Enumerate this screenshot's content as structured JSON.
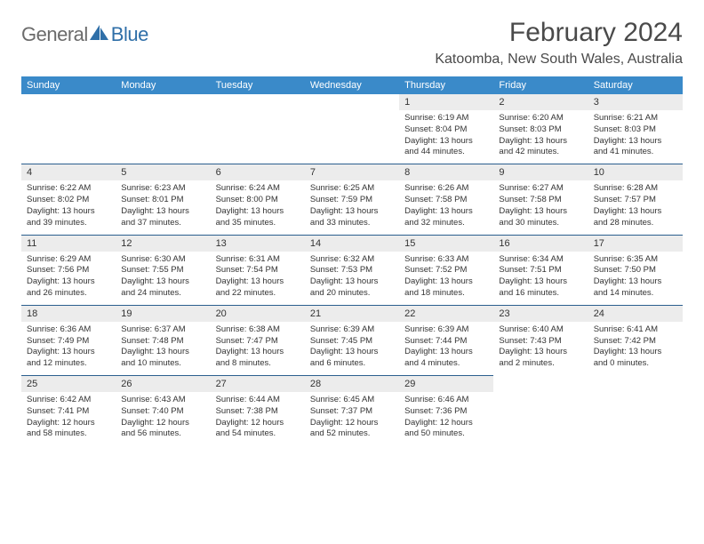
{
  "brand": {
    "general": "General",
    "blue": "Blue"
  },
  "header": {
    "title": "February 2024",
    "subtitle": "Katoomba, New South Wales, Australia"
  },
  "colors": {
    "header_bg": "#3a8ac9",
    "header_text": "#ffffff",
    "daynum_bg": "#ececec",
    "border": "#2b5f8f",
    "logo_blue": "#2f6fa8",
    "logo_grey": "#6b6b6b"
  },
  "weekdays": [
    "Sunday",
    "Monday",
    "Tuesday",
    "Wednesday",
    "Thursday",
    "Friday",
    "Saturday"
  ],
  "weeks": [
    [
      {
        "day": "",
        "sunrise": "",
        "sunset": "",
        "daylight": ""
      },
      {
        "day": "",
        "sunrise": "",
        "sunset": "",
        "daylight": ""
      },
      {
        "day": "",
        "sunrise": "",
        "sunset": "",
        "daylight": ""
      },
      {
        "day": "",
        "sunrise": "",
        "sunset": "",
        "daylight": ""
      },
      {
        "day": "1",
        "sunrise": "Sunrise: 6:19 AM",
        "sunset": "Sunset: 8:04 PM",
        "daylight": "Daylight: 13 hours and 44 minutes."
      },
      {
        "day": "2",
        "sunrise": "Sunrise: 6:20 AM",
        "sunset": "Sunset: 8:03 PM",
        "daylight": "Daylight: 13 hours and 42 minutes."
      },
      {
        "day": "3",
        "sunrise": "Sunrise: 6:21 AM",
        "sunset": "Sunset: 8:03 PM",
        "daylight": "Daylight: 13 hours and 41 minutes."
      }
    ],
    [
      {
        "day": "4",
        "sunrise": "Sunrise: 6:22 AM",
        "sunset": "Sunset: 8:02 PM",
        "daylight": "Daylight: 13 hours and 39 minutes."
      },
      {
        "day": "5",
        "sunrise": "Sunrise: 6:23 AM",
        "sunset": "Sunset: 8:01 PM",
        "daylight": "Daylight: 13 hours and 37 minutes."
      },
      {
        "day": "6",
        "sunrise": "Sunrise: 6:24 AM",
        "sunset": "Sunset: 8:00 PM",
        "daylight": "Daylight: 13 hours and 35 minutes."
      },
      {
        "day": "7",
        "sunrise": "Sunrise: 6:25 AM",
        "sunset": "Sunset: 7:59 PM",
        "daylight": "Daylight: 13 hours and 33 minutes."
      },
      {
        "day": "8",
        "sunrise": "Sunrise: 6:26 AM",
        "sunset": "Sunset: 7:58 PM",
        "daylight": "Daylight: 13 hours and 32 minutes."
      },
      {
        "day": "9",
        "sunrise": "Sunrise: 6:27 AM",
        "sunset": "Sunset: 7:58 PM",
        "daylight": "Daylight: 13 hours and 30 minutes."
      },
      {
        "day": "10",
        "sunrise": "Sunrise: 6:28 AM",
        "sunset": "Sunset: 7:57 PM",
        "daylight": "Daylight: 13 hours and 28 minutes."
      }
    ],
    [
      {
        "day": "11",
        "sunrise": "Sunrise: 6:29 AM",
        "sunset": "Sunset: 7:56 PM",
        "daylight": "Daylight: 13 hours and 26 minutes."
      },
      {
        "day": "12",
        "sunrise": "Sunrise: 6:30 AM",
        "sunset": "Sunset: 7:55 PM",
        "daylight": "Daylight: 13 hours and 24 minutes."
      },
      {
        "day": "13",
        "sunrise": "Sunrise: 6:31 AM",
        "sunset": "Sunset: 7:54 PM",
        "daylight": "Daylight: 13 hours and 22 minutes."
      },
      {
        "day": "14",
        "sunrise": "Sunrise: 6:32 AM",
        "sunset": "Sunset: 7:53 PM",
        "daylight": "Daylight: 13 hours and 20 minutes."
      },
      {
        "day": "15",
        "sunrise": "Sunrise: 6:33 AM",
        "sunset": "Sunset: 7:52 PM",
        "daylight": "Daylight: 13 hours and 18 minutes."
      },
      {
        "day": "16",
        "sunrise": "Sunrise: 6:34 AM",
        "sunset": "Sunset: 7:51 PM",
        "daylight": "Daylight: 13 hours and 16 minutes."
      },
      {
        "day": "17",
        "sunrise": "Sunrise: 6:35 AM",
        "sunset": "Sunset: 7:50 PM",
        "daylight": "Daylight: 13 hours and 14 minutes."
      }
    ],
    [
      {
        "day": "18",
        "sunrise": "Sunrise: 6:36 AM",
        "sunset": "Sunset: 7:49 PM",
        "daylight": "Daylight: 13 hours and 12 minutes."
      },
      {
        "day": "19",
        "sunrise": "Sunrise: 6:37 AM",
        "sunset": "Sunset: 7:48 PM",
        "daylight": "Daylight: 13 hours and 10 minutes."
      },
      {
        "day": "20",
        "sunrise": "Sunrise: 6:38 AM",
        "sunset": "Sunset: 7:47 PM",
        "daylight": "Daylight: 13 hours and 8 minutes."
      },
      {
        "day": "21",
        "sunrise": "Sunrise: 6:39 AM",
        "sunset": "Sunset: 7:45 PM",
        "daylight": "Daylight: 13 hours and 6 minutes."
      },
      {
        "day": "22",
        "sunrise": "Sunrise: 6:39 AM",
        "sunset": "Sunset: 7:44 PM",
        "daylight": "Daylight: 13 hours and 4 minutes."
      },
      {
        "day": "23",
        "sunrise": "Sunrise: 6:40 AM",
        "sunset": "Sunset: 7:43 PM",
        "daylight": "Daylight: 13 hours and 2 minutes."
      },
      {
        "day": "24",
        "sunrise": "Sunrise: 6:41 AM",
        "sunset": "Sunset: 7:42 PM",
        "daylight": "Daylight: 13 hours and 0 minutes."
      }
    ],
    [
      {
        "day": "25",
        "sunrise": "Sunrise: 6:42 AM",
        "sunset": "Sunset: 7:41 PM",
        "daylight": "Daylight: 12 hours and 58 minutes."
      },
      {
        "day": "26",
        "sunrise": "Sunrise: 6:43 AM",
        "sunset": "Sunset: 7:40 PM",
        "daylight": "Daylight: 12 hours and 56 minutes."
      },
      {
        "day": "27",
        "sunrise": "Sunrise: 6:44 AM",
        "sunset": "Sunset: 7:38 PM",
        "daylight": "Daylight: 12 hours and 54 minutes."
      },
      {
        "day": "28",
        "sunrise": "Sunrise: 6:45 AM",
        "sunset": "Sunset: 7:37 PM",
        "daylight": "Daylight: 12 hours and 52 minutes."
      },
      {
        "day": "29",
        "sunrise": "Sunrise: 6:46 AM",
        "sunset": "Sunset: 7:36 PM",
        "daylight": "Daylight: 12 hours and 50 minutes."
      },
      {
        "day": "",
        "sunrise": "",
        "sunset": "",
        "daylight": ""
      },
      {
        "day": "",
        "sunrise": "",
        "sunset": "",
        "daylight": ""
      }
    ]
  ]
}
